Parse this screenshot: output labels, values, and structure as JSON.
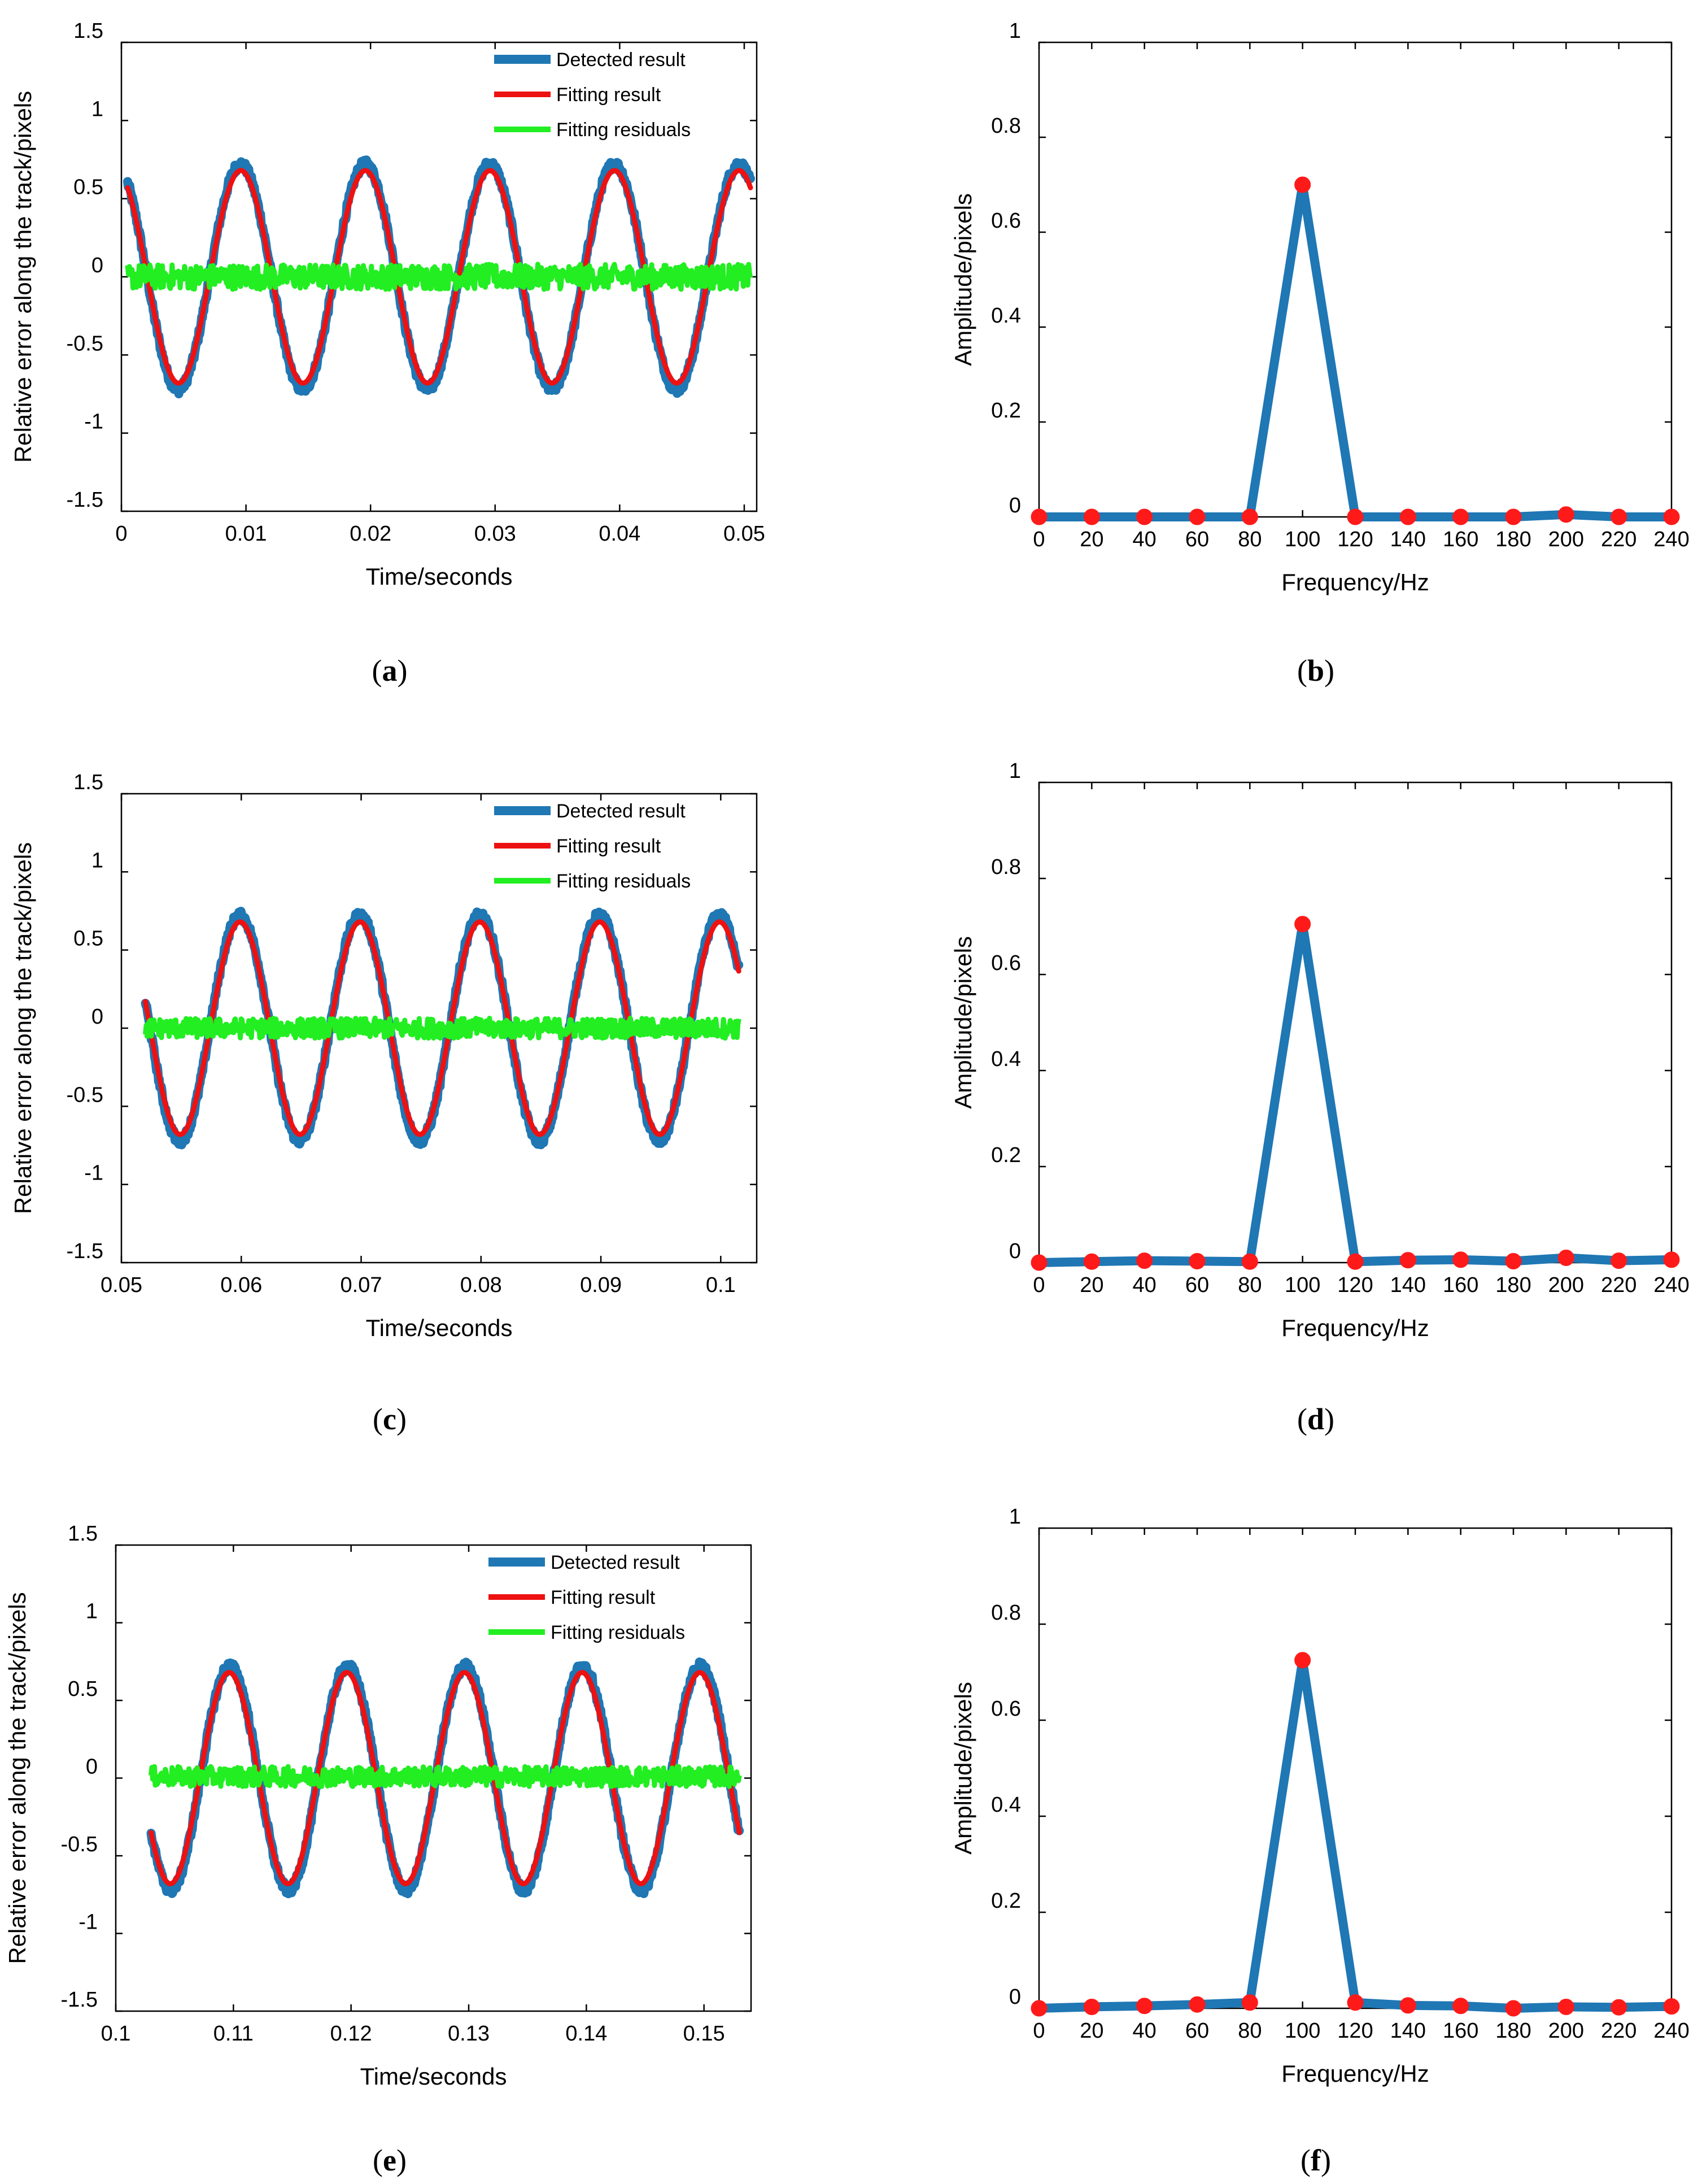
{
  "figure": {
    "panels": [
      {
        "label": "a"
      },
      {
        "label": "b"
      },
      {
        "label": "c"
      },
      {
        "label": "d"
      },
      {
        "label": "e"
      },
      {
        "label": "f"
      }
    ]
  },
  "colors": {
    "detected": "#1f77b4",
    "fitting": "#ee1111",
    "residuals": "#22ee22",
    "marker": "#ff1a1a"
  },
  "chart_data": [
    {
      "panel": "a",
      "type": "line",
      "xlabel": "Time/seconds",
      "ylabel": "Relative error along the track/pixels",
      "xlim": [
        0,
        0.051
      ],
      "ylim": [
        -1.5,
        1.5
      ],
      "xticks": [
        "0",
        "0.01",
        "0.02",
        "0.03",
        "0.04",
        "0.05"
      ],
      "yticks": [
        "-1.5",
        "-1",
        "-0.5",
        "0",
        "0.5",
        "1",
        "1.5"
      ],
      "legend": {
        "position": "top-right",
        "entries": [
          "Detected result",
          "Fitting result",
          "Fitting residuals"
        ]
      },
      "series": [
        {
          "name": "Detected result",
          "function": "sine",
          "amplitude": 0.72,
          "frequency_hz": 100,
          "x_start": 0.0005,
          "x_end": 0.0505,
          "value_at_start": 0.6,
          "rising_at_start": false
        },
        {
          "name": "Fitting result",
          "function": "sine",
          "amplitude": 0.68,
          "frequency_hz": 100,
          "x_start": 0.0005,
          "x_end": 0.0505,
          "value_at_start": 0.57,
          "rising_at_start": false
        },
        {
          "name": "Fitting residuals",
          "function": "noise",
          "mean": 0.0,
          "range": [
            -0.1,
            0.1
          ],
          "x_start": 0.0005,
          "x_end": 0.0505
        }
      ]
    },
    {
      "panel": "b",
      "type": "line",
      "xlabel": "Frequency/Hz",
      "ylabel": "Amplitude/pixels",
      "xlim": [
        0,
        240
      ],
      "ylim": [
        0,
        1
      ],
      "xticks": [
        "0",
        "20",
        "40",
        "60",
        "80",
        "100",
        "120",
        "140",
        "160",
        "180",
        "200",
        "220",
        "240"
      ],
      "yticks": [
        "0",
        "0.2",
        "0.4",
        "0.6",
        "0.8",
        "1"
      ],
      "x": [
        0,
        20,
        40,
        60,
        80,
        100,
        120,
        140,
        160,
        180,
        200,
        220,
        240
      ],
      "values": [
        0.0,
        0.0,
        0.0,
        0.0,
        0.0,
        0.7,
        0.0,
        0.0,
        0.0,
        0.0,
        0.005,
        0.0,
        0.0
      ]
    },
    {
      "panel": "c",
      "type": "line",
      "xlabel": "Time/seconds",
      "ylabel": "Relative error along the track/pixels",
      "xlim": [
        0.05,
        0.103
      ],
      "ylim": [
        -1.5,
        1.5
      ],
      "xticks": [
        "0.05",
        "0.06",
        "0.07",
        "0.08",
        "0.09",
        "0.1"
      ],
      "yticks": [
        "-1.5",
        "-1",
        "-0.5",
        "0",
        "0.5",
        "1",
        "1.5"
      ],
      "legend": {
        "position": "top-right",
        "entries": [
          "Detected result",
          "Fitting result",
          "Fitting residuals"
        ]
      },
      "series": [
        {
          "name": "Detected result",
          "function": "sine",
          "amplitude": 0.72,
          "frequency_hz": 100,
          "x_start": 0.052,
          "x_end": 0.1015,
          "value_at_start": 0.17,
          "rising_at_start": false
        },
        {
          "name": "Fitting result",
          "function": "sine",
          "amplitude": 0.68,
          "frequency_hz": 100,
          "x_start": 0.052,
          "x_end": 0.1015,
          "value_at_start": 0.17,
          "rising_at_start": false
        },
        {
          "name": "Fitting residuals",
          "function": "noise",
          "mean": 0.0,
          "range": [
            -0.08,
            0.08
          ],
          "x_start": 0.052,
          "x_end": 0.1015
        }
      ]
    },
    {
      "panel": "d",
      "type": "line",
      "xlabel": "Frequency/Hz",
      "ylabel": "Amplitude/pixels",
      "xlim": [
        0,
        240
      ],
      "ylim": [
        0,
        1
      ],
      "xticks": [
        "0",
        "20",
        "40",
        "60",
        "80",
        "100",
        "120",
        "140",
        "160",
        "180",
        "200",
        "220",
        "240"
      ],
      "yticks": [
        "0",
        "0.2",
        "0.4",
        "0.6",
        "0.8",
        "1"
      ],
      "x": [
        0,
        20,
        40,
        60,
        80,
        100,
        120,
        140,
        160,
        180,
        200,
        220,
        240
      ],
      "values": [
        0.0,
        0.002,
        0.004,
        0.003,
        0.002,
        0.705,
        0.002,
        0.005,
        0.006,
        0.003,
        0.01,
        0.004,
        0.006
      ]
    },
    {
      "panel": "e",
      "type": "line",
      "xlabel": "Time/seconds",
      "ylabel": "Relative error along the track/pixels",
      "xlim": [
        0.1,
        0.154
      ],
      "ylim": [
        -1.5,
        1.5
      ],
      "xticks": [
        "0.1",
        "0.11",
        "0.12",
        "0.13",
        "0.14",
        "0.15"
      ],
      "yticks": [
        "-1.5",
        "-1",
        "-0.5",
        "0",
        "0.5",
        "1",
        "1.5"
      ],
      "legend": {
        "position": "top-right",
        "entries": [
          "Detected result",
          "Fitting result",
          "Fitting residuals"
        ]
      },
      "series": [
        {
          "name": "Detected result",
          "function": "sine",
          "amplitude": 0.72,
          "frequency_hz": 100,
          "x_start": 0.103,
          "x_end": 0.153,
          "value_at_start": -0.35,
          "rising_at_start": false
        },
        {
          "name": "Fitting result",
          "function": "sine",
          "amplitude": 0.68,
          "frequency_hz": 100,
          "x_start": 0.103,
          "x_end": 0.153,
          "value_at_start": -0.35,
          "rising_at_start": false
        },
        {
          "name": "Fitting residuals",
          "function": "noise",
          "mean": 0.01,
          "range": [
            -0.08,
            0.08
          ],
          "x_start": 0.103,
          "x_end": 0.153
        }
      ]
    },
    {
      "panel": "f",
      "type": "line",
      "xlabel": "Frequency/Hz",
      "ylabel": "Amplitude/pixels",
      "xlim": [
        0,
        240
      ],
      "ylim": [
        0,
        1
      ],
      "xticks": [
        "0",
        "20",
        "40",
        "60",
        "80",
        "100",
        "120",
        "140",
        "160",
        "180",
        "200",
        "220",
        "240"
      ],
      "yticks": [
        "0",
        "0.2",
        "0.4",
        "0.6",
        "0.8",
        "1"
      ],
      "x": [
        0,
        20,
        40,
        60,
        80,
        100,
        120,
        140,
        160,
        180,
        200,
        220,
        240
      ],
      "values": [
        0.0,
        0.003,
        0.005,
        0.008,
        0.012,
        0.725,
        0.012,
        0.006,
        0.005,
        0.0,
        0.003,
        0.002,
        0.004
      ]
    }
  ]
}
